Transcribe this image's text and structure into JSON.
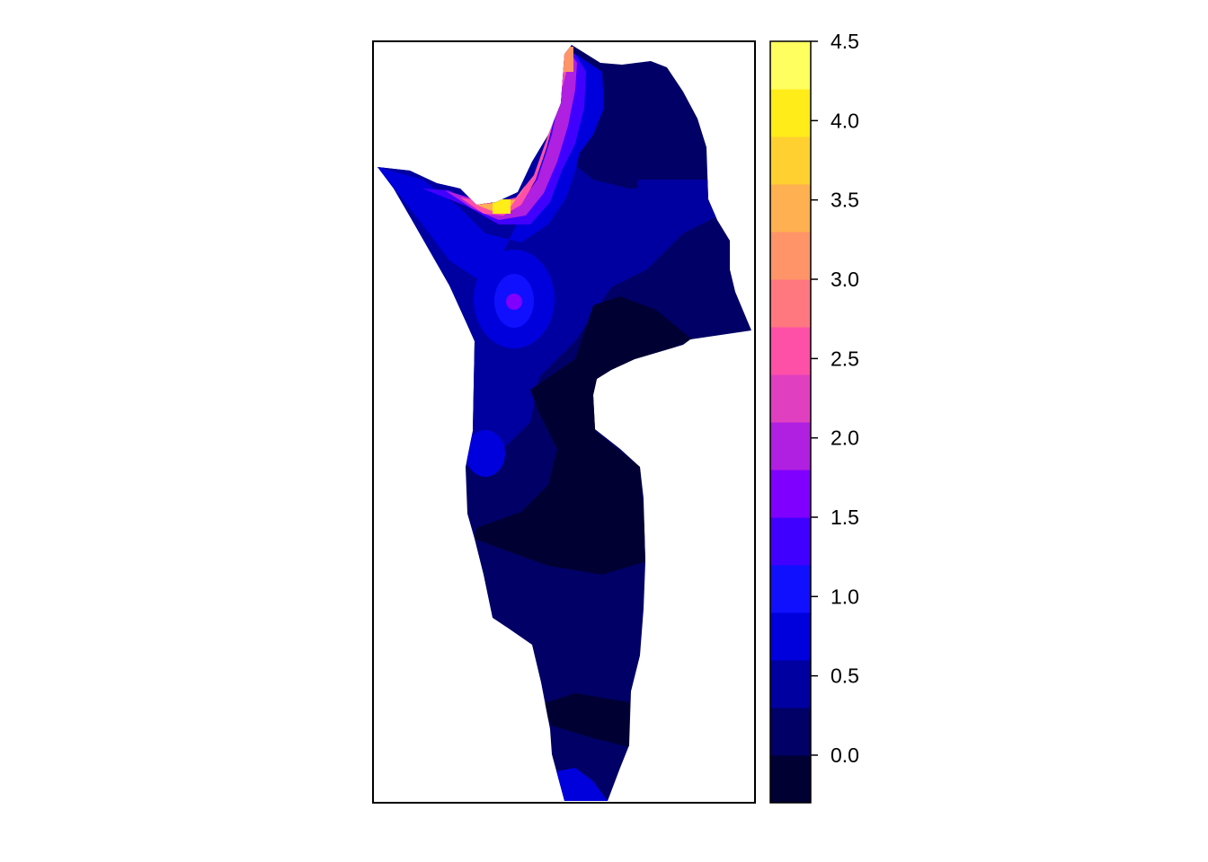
{
  "raster_map": {
    "description_type": "interpolated raster surface",
    "background": "#ffffff",
    "frame_color": "#000000"
  },
  "legend": {
    "ticks": [
      "4.5",
      "4.0",
      "3.5",
      "3.0",
      "2.5",
      "2.0",
      "1.5",
      "1.0",
      "0.5",
      "0.0"
    ],
    "range": [
      -0.3,
      4.5
    ],
    "bin_width": 0.3,
    "colors": [
      "#000033",
      "#000066",
      "#0000A0",
      "#0000DC",
      "#1010FF",
      "#4000FF",
      "#8000FF",
      "#B020E0",
      "#E040C0",
      "#FF50A8",
      "#FF7880",
      "#FF9468",
      "#FFB050",
      "#FFD030",
      "#FFEC18",
      "#FFFF60"
    ]
  }
}
